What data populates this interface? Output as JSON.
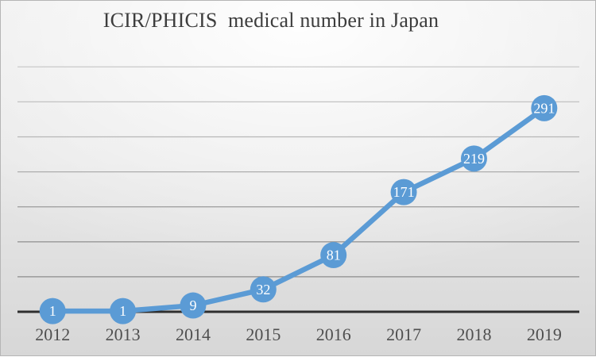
{
  "chart_data": {
    "type": "line",
    "title": "ICIR/PHICIS  medical number in Japan",
    "categories": [
      "2012",
      "2013",
      "2014",
      "2015",
      "2016",
      "2017",
      "2018",
      "2019"
    ],
    "series": [
      {
        "name": "medical number",
        "values": [
          1,
          1,
          9,
          32,
          81,
          171,
          219,
          291
        ]
      }
    ],
    "data_labels_shown": true,
    "xlabel": "",
    "ylabel": "",
    "ylim": [
      0,
      350
    ],
    "gridline_interval": 50,
    "grid": "horizontal",
    "y_tick_labels_shown": false,
    "legend": "none",
    "colors": {
      "line": "#5b9bd5",
      "marker": "#5b9bd5",
      "data_label_text": "#ffffff",
      "axis_line": "#2f2f2f",
      "tick_label_text": "#4f4f4f",
      "title_text": "#3d3d3d"
    }
  }
}
